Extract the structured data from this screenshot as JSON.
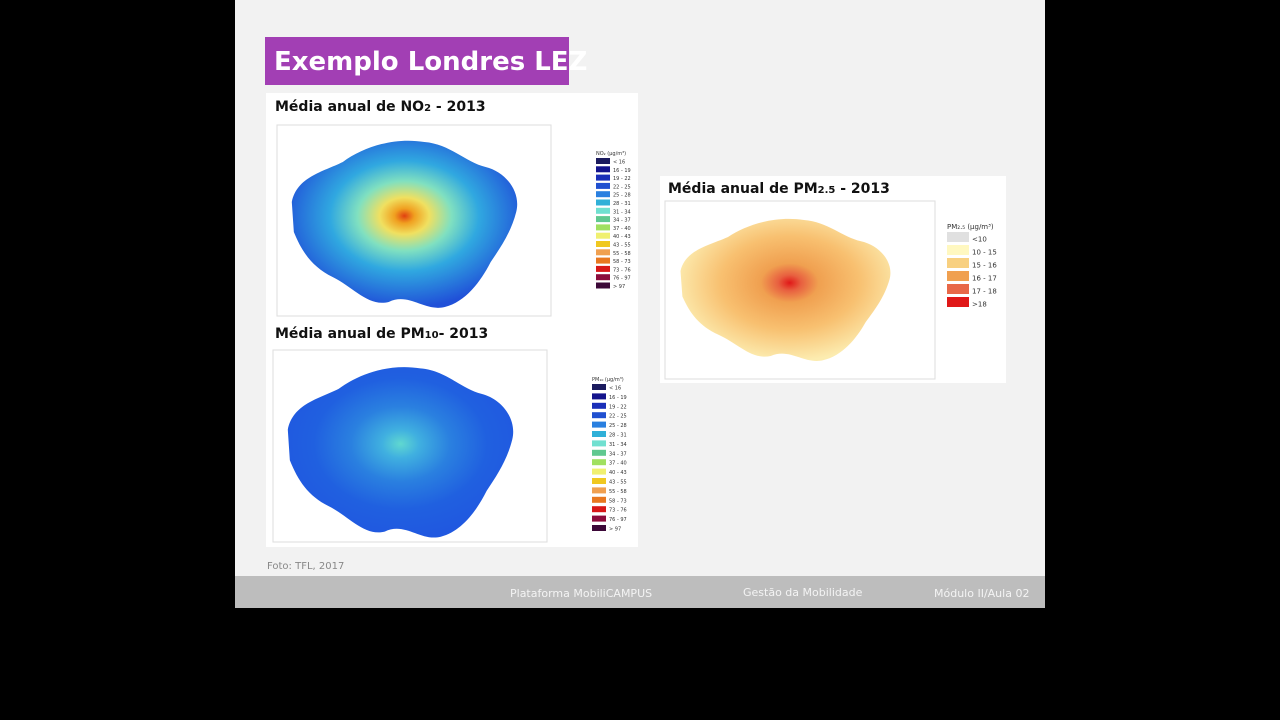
{
  "slide": {
    "title": "Exemplo Londres LEZ",
    "panels": [
      {
        "prefix": "Média anual de NO",
        "sub": "2",
        "suffix": " - 2013",
        "legend_title": "NO₂ (µg/m³)",
        "legend": [
          {
            "label": "< 16",
            "color": "#1b1b5e"
          },
          {
            "label": "16 - 19",
            "color": "#14148c"
          },
          {
            "label": "19 - 22",
            "color": "#1a2fb8"
          },
          {
            "label": "22 - 25",
            "color": "#2050d0"
          },
          {
            "label": "25 - 28",
            "color": "#2a80e0"
          },
          {
            "label": "28 - 31",
            "color": "#30b0d8"
          },
          {
            "label": "31 - 34",
            "color": "#70e0d0"
          },
          {
            "label": "34 - 37",
            "color": "#60c890"
          },
          {
            "label": "37 - 40",
            "color": "#a0e060"
          },
          {
            "label": "40 - 43",
            "color": "#f0f070"
          },
          {
            "label": "43 - 55",
            "color": "#f0c820"
          },
          {
            "label": "55 - 58",
            "color": "#f0a050"
          },
          {
            "label": "58 - 73",
            "color": "#e87820"
          },
          {
            "label": "73 - 76",
            "color": "#d81818"
          },
          {
            "label": "76 - 97",
            "color": "#8c0c3c"
          },
          {
            "label": "> 97",
            "color": "#3c0838"
          }
        ]
      },
      {
        "prefix": "Média anual de PM",
        "sub": "10",
        "suffix": "- 2013",
        "legend_title": "PM₁₀ (µg/m³)",
        "legend": [
          {
            "label": "< 16",
            "color": "#1b1b5e"
          },
          {
            "label": "16 - 19",
            "color": "#14148c"
          },
          {
            "label": "19 - 22",
            "color": "#1a2fb8"
          },
          {
            "label": "22 - 25",
            "color": "#2050d0"
          },
          {
            "label": "25 - 28",
            "color": "#2a80e0"
          },
          {
            "label": "28 - 31",
            "color": "#30b0d8"
          },
          {
            "label": "31 - 34",
            "color": "#70e0d0"
          },
          {
            "label": "34 - 37",
            "color": "#60c890"
          },
          {
            "label": "37 - 40",
            "color": "#a0e060"
          },
          {
            "label": "40 - 43",
            "color": "#f0f070"
          },
          {
            "label": "43 - 55",
            "color": "#f0c820"
          },
          {
            "label": "55 - 58",
            "color": "#f0a050"
          },
          {
            "label": "58 - 73",
            "color": "#e87820"
          },
          {
            "label": "73 - 76",
            "color": "#d81818"
          },
          {
            "label": "76 - 97",
            "color": "#8c0c3c"
          },
          {
            "label": "> 97",
            "color": "#3c0838"
          }
        ]
      },
      {
        "prefix": "Média anual de PM",
        "sub": "2.5",
        "suffix": " - 2013",
        "legend_title": "PM₂.₅ (µg/m³)",
        "legend": [
          {
            "label": "<10",
            "color": "#e0e0e0"
          },
          {
            "label": "10 - 15",
            "color": "#fff8c0"
          },
          {
            "label": "15 - 16",
            "color": "#f8d080"
          },
          {
            "label": "16 - 17",
            "color": "#f0a050"
          },
          {
            "label": "17 - 18",
            "color": "#e86848"
          },
          {
            "label": ">18",
            "color": "#e01818"
          }
        ]
      }
    ],
    "source": "Foto: TFL, 2017",
    "footer": [
      "Plataforma MobiliCAMPUS",
      "Gestão da Mobilidade",
      "Módulo II/Aula 02"
    ]
  }
}
